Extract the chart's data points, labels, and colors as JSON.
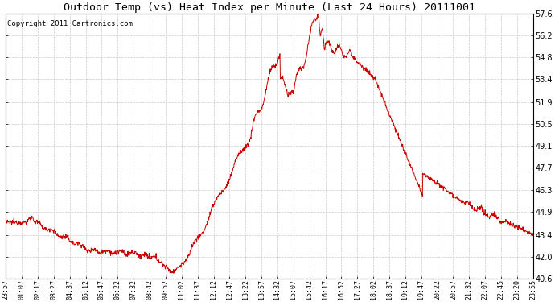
{
  "title": "Outdoor Temp (vs) Heat Index per Minute (Last 24 Hours) 20111001",
  "copyright": "Copyright 2011 Cartronics.com",
  "line_color": "#cc0000",
  "bg_color": "#ffffff",
  "grid_color": "#bbbbbb",
  "ylim": [
    40.6,
    57.6
  ],
  "yticks": [
    40.6,
    42.0,
    43.4,
    44.9,
    46.3,
    47.7,
    49.1,
    50.5,
    51.9,
    53.4,
    54.8,
    56.2,
    57.6
  ],
  "xtick_labels": [
    "23:57",
    "01:07",
    "02:17",
    "03:27",
    "04:37",
    "05:12",
    "05:47",
    "06:22",
    "07:32",
    "08:42",
    "09:52",
    "11:02",
    "11:37",
    "12:12",
    "12:47",
    "13:22",
    "13:57",
    "14:32",
    "15:07",
    "15:42",
    "16:17",
    "16:52",
    "17:27",
    "18:02",
    "18:37",
    "19:12",
    "19:47",
    "20:22",
    "20:57",
    "21:32",
    "22:07",
    "22:45",
    "23:20",
    "23:55"
  ],
  "num_points": 1440,
  "figwidth": 6.9,
  "figheight": 3.75,
  "dpi": 100
}
